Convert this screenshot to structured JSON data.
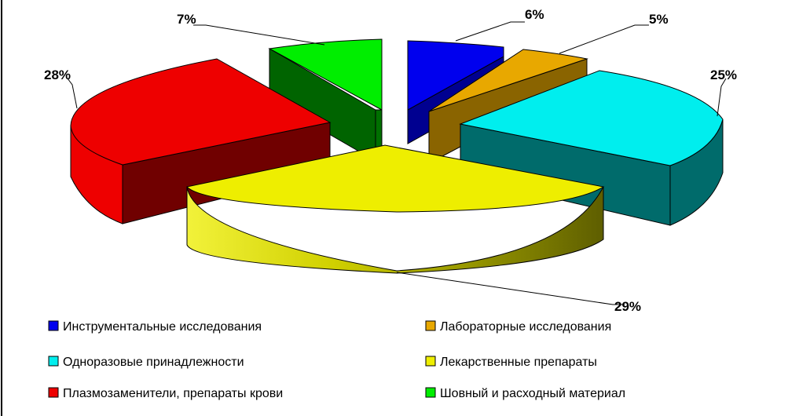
{
  "chart_data": {
    "type": "pie",
    "variant": "3d-exploded",
    "title": "",
    "unit": "%",
    "slices": [
      {
        "label": "Инструментальные исследования",
        "value": 6,
        "display": "6%",
        "color": "#0000ee"
      },
      {
        "label": "Лабораторные исследования",
        "value": 5,
        "display": "5%",
        "color": "#e8a800"
      },
      {
        "label": "Одноразовые принадлежности",
        "value": 25,
        "display": "25%",
        "color": "#00eeee"
      },
      {
        "label": "Лекарственные препараты",
        "value": 29,
        "display": "29%",
        "color": "#eeee00"
      },
      {
        "label": "Плазмозаменители, препараты крови",
        "value": 28,
        "display": "28%",
        "color": "#ee0000"
      },
      {
        "label": "Шовный и расходный материал",
        "value": 7,
        "display": "7%",
        "color": "#00ee00"
      }
    ],
    "legend_position": "bottom",
    "legend_columns": 2
  }
}
